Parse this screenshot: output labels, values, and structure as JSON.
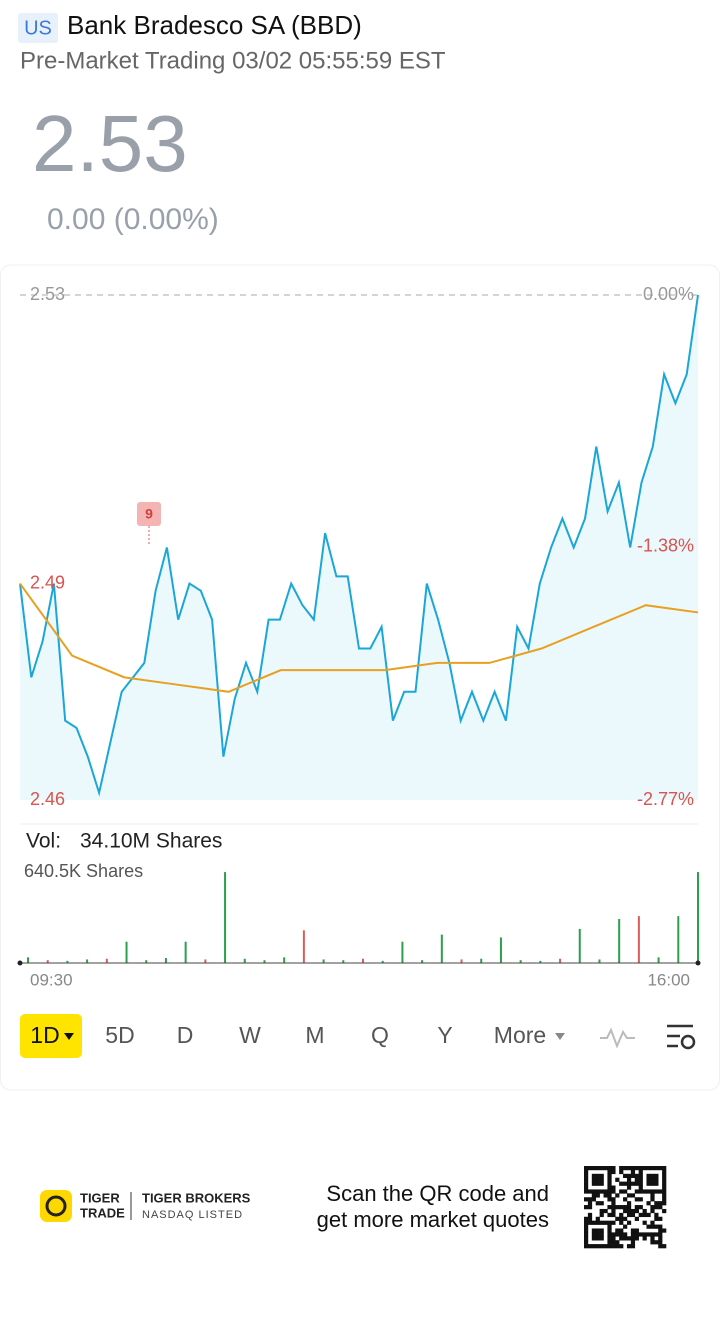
{
  "header": {
    "market": "US",
    "title": "Bank Bradesco SA (BBD)",
    "subtitle": "Pre-Market Trading 03/02 05:55:59 EST"
  },
  "quote": {
    "price": "2.53",
    "change": "0.00 (0.00%)"
  },
  "chart_data": [
    {
      "type": "line",
      "reference_line": 2.53,
      "annotation": "9",
      "ylim": [
        2.46,
        2.53
      ],
      "yticks": [
        2.53,
        2.49,
        2.46
      ],
      "y2lim": [
        -2.77,
        0
      ],
      "y2ticks": [
        {
          "value": 0,
          "label": "0.00%"
        },
        {
          "value": -1.38,
          "label": "-1.38%"
        },
        {
          "value": -2.77,
          "label": "-2.77%"
        }
      ],
      "series": [
        {
          "name": "Price",
          "color": "#1aa7d8",
          "values": [
            2.49,
            2.477,
            2.482,
            2.49,
            2.471,
            2.47,
            2.466,
            2.461,
            2.468,
            2.475,
            2.477,
            2.479,
            2.489,
            2.495,
            2.485,
            2.49,
            2.489,
            2.485,
            2.466,
            2.474,
            2.479,
            2.475,
            2.485,
            2.485,
            2.49,
            2.487,
            2.485,
            2.497,
            2.491,
            2.491,
            2.481,
            2.481,
            2.484,
            2.471,
            2.475,
            2.475,
            2.49,
            2.485,
            2.479,
            2.471,
            2.475,
            2.471,
            2.475,
            2.471,
            2.484,
            2.481,
            2.49,
            2.495,
            2.499,
            2.495,
            2.499,
            2.509,
            2.5,
            2.504,
            2.495,
            2.504,
            2.509,
            2.519,
            2.515,
            2.519,
            2.53
          ]
        },
        {
          "name": "Average",
          "color": "#e8a020",
          "values": [
            2.49,
            2.48,
            2.477,
            2.476,
            2.475,
            2.478,
            2.478,
            2.478,
            2.479,
            2.479,
            2.481,
            2.484,
            2.487,
            2.486
          ]
        }
      ]
    },
    {
      "type": "bar",
      "title": "Vol:",
      "total": "34.10M Shares",
      "ylim": [
        0,
        640.5
      ],
      "yticks": [
        {
          "value": 640.5,
          "label": "640.5K Shares"
        }
      ],
      "time_labels": [
        "09:30",
        "16:00"
      ],
      "values": [
        40,
        20,
        15,
        25,
        30,
        150,
        20,
        35,
        150,
        25,
        640,
        30,
        20,
        40,
        230,
        25,
        20,
        30,
        15,
        150,
        20,
        200,
        25,
        30,
        180,
        20,
        15,
        30,
        240,
        25,
        310,
        330,
        40,
        330,
        640
      ],
      "colors": [
        "#2aa04a",
        "#e05a5a",
        "#2aa04a",
        "#2aa04a",
        "#e05a5a",
        "#2aa04a",
        "#2aa04a",
        "#2aa04a",
        "#2aa04a",
        "#e05a5a",
        "#2aa04a",
        "#2aa04a",
        "#2aa04a",
        "#2aa04a",
        "#e05a5a",
        "#2aa04a",
        "#2aa04a",
        "#e05a5a",
        "#2aa04a",
        "#2aa04a",
        "#2aa04a",
        "#2aa04a",
        "#e05a5a",
        "#2aa04a",
        "#2aa04a",
        "#2aa04a",
        "#2aa04a",
        "#e05a5a",
        "#2aa04a",
        "#2aa04a",
        "#2aa04a",
        "#e05a5a",
        "#2aa04a",
        "#2aa04a",
        "#2aa04a"
      ]
    }
  ],
  "tabs": [
    "1D",
    "5D",
    "D",
    "W",
    "M",
    "Q",
    "Y",
    "More"
  ],
  "footer": {
    "brand_top": "TIGER",
    "brand_bottom": "TRADE",
    "broker": "TIGER BROKERS",
    "listing": "NASDAQ LISTED",
    "cta_line1": "Scan the QR code and",
    "cta_line2": "get more market quotes"
  }
}
